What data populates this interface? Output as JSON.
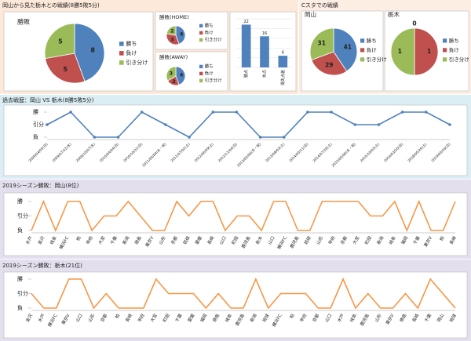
{
  "panels": [
    {
      "title": "岡山から見た栃木との戦績(8勝5敗5分)"
    },
    {
      "title": "Cスタでの戦績"
    },
    {
      "title": "過去戦歴：岡山 VS 栃木(8勝5敗5分)"
    },
    {
      "title": "2019シーズン勝敗：岡山(8位)"
    },
    {
      "title": "2019シーズン勝敗：栃木(21位)"
    }
  ],
  "chart_data": [
    {
      "type": "pie",
      "title": "勝敗",
      "categories": [
        "勝ち",
        "負け",
        "引き分け"
      ],
      "values": [
        8,
        5,
        5
      ],
      "colors": [
        "#4f81bd",
        "#c0504d",
        "#9bbb59"
      ]
    },
    {
      "type": "pie",
      "title": "勝敗(HOME)",
      "categories": [
        "勝ち",
        "負け",
        "引き分け"
      ],
      "values": [
        4,
        3,
        2
      ],
      "colors": [
        "#4f81bd",
        "#c0504d",
        "#9bbb59"
      ]
    },
    {
      "type": "pie",
      "title": "勝敗(AWAY)",
      "categories": [
        "勝ち",
        "負け",
        "引き分け"
      ],
      "values": [
        4,
        2,
        3
      ],
      "colors": [
        "#4f81bd",
        "#c0504d",
        "#9bbb59"
      ]
    },
    {
      "type": "bar",
      "categories": [
        "勝点",
        "失点",
        "得失点差"
      ],
      "values": [
        22,
        16,
        6
      ],
      "color": "#4f81bd",
      "ylim": [
        0,
        25
      ],
      "yticks": [
        0,
        5,
        10,
        15,
        20,
        25
      ],
      "grid": true
    },
    {
      "type": "pie",
      "title": "岡山",
      "categories": [
        "勝ち",
        "負け",
        "引き分け"
      ],
      "values": [
        41,
        29,
        31
      ],
      "colors": [
        "#4f81bd",
        "#c0504d",
        "#9bbb59"
      ]
    },
    {
      "type": "pie",
      "title": "栃木",
      "categories": [
        "勝ち",
        "負け",
        "引き分け"
      ],
      "values": [
        0,
        1,
        1
      ],
      "colors": [
        "#4f81bd",
        "#c0504d",
        "#9bbb59"
      ]
    },
    {
      "type": "line",
      "color": "#4f81bd",
      "markers": true,
      "categories": [
        "2009/04/05(日)",
        "2009/07/22(水)",
        "2009/10/07(水)",
        "2010/04/04(日)",
        "2010/10/31(日)",
        "2011/05/04(水・祝)",
        "2011/07/02(土)",
        "2012/06/09(土)",
        "2012/11/04(日)",
        "2013/05/06(月・祝)",
        "2013/08/03(土)",
        "2014/05/11(日)",
        "2014/07/26(土)",
        "2015/05/06(水・祝)",
        "2015/10/03(土)",
        "2016/03/20(日)",
        "2018/05/26(土)",
        "2019/05/26(日)"
      ],
      "values": [
        2,
        3,
        1,
        1,
        3,
        2,
        1,
        3,
        3,
        1,
        1,
        3,
        3,
        2,
        2,
        3,
        3,
        2
      ],
      "ylim": [
        1,
        3
      ],
      "yticks": [
        {
          "value": 3,
          "label": "勝"
        },
        {
          "value": 2,
          "label": "引分"
        },
        {
          "value": 1,
          "label": "負"
        }
      ]
    },
    {
      "type": "line",
      "color": "#f79646",
      "markers": false,
      "categories": [
        "水戸",
        "金沢",
        "岐阜",
        "横浜FC",
        "柏",
        "甲府",
        "大宮",
        "千葉",
        "新潟",
        "徳島",
        "東京V",
        "山形",
        "京都",
        "琉球",
        "愛媛",
        "長崎",
        "山口",
        "町田",
        "鹿児島",
        "栃木",
        "山口",
        "横浜FC",
        "鹿児島",
        "琉球",
        "山形",
        "甲府",
        "京都",
        "大宮",
        "町田",
        "新潟",
        "岐阜",
        "福岡",
        "千葉",
        "東京V",
        "柏",
        "長崎"
      ],
      "values": [
        1,
        3,
        1,
        3,
        3,
        1,
        2,
        2,
        3,
        2,
        1,
        1,
        3,
        2,
        3,
        3,
        1,
        2,
        2,
        1,
        3,
        3,
        1,
        1,
        3,
        3,
        3,
        3,
        2,
        2,
        3,
        1,
        3,
        1,
        1,
        3
      ],
      "ylim": [
        1,
        3
      ],
      "yticks": [
        {
          "value": 3,
          "label": "勝"
        },
        {
          "value": 2,
          "label": "引分"
        },
        {
          "value": 1,
          "label": "負"
        }
      ]
    },
    {
      "type": "line",
      "color": "#f79646",
      "markers": false,
      "categories": [
        "金沢",
        "水戸",
        "横浜FC",
        "東京V",
        "山口",
        "山形",
        "京都",
        "柏",
        "長崎",
        "甲府",
        "大宮",
        "町田",
        "千葉",
        "愛媛",
        "福岡",
        "徳島",
        "岐阜",
        "鹿児島",
        "新潟",
        "琉球",
        "横浜FC",
        "柏",
        "甲府",
        "京都",
        "山口",
        "水戸",
        "岐阜",
        "鹿児島",
        "山形",
        "東京V",
        "徳島",
        "長崎",
        "千葉",
        "岡山",
        "琉球"
      ],
      "values": [
        2,
        1,
        1,
        3,
        3,
        1,
        2,
        1,
        1,
        1,
        3,
        2,
        2,
        2,
        1,
        2,
        1,
        1,
        3,
        1,
        2,
        2,
        2,
        1,
        1,
        3,
        1,
        2,
        1,
        1,
        2,
        1,
        3,
        2,
        1
      ],
      "ylim": [
        1,
        3
      ],
      "yticks": [
        {
          "value": 3,
          "label": "勝"
        },
        {
          "value": 2,
          "label": "引分"
        },
        {
          "value": 1,
          "label": "負"
        }
      ]
    }
  ]
}
